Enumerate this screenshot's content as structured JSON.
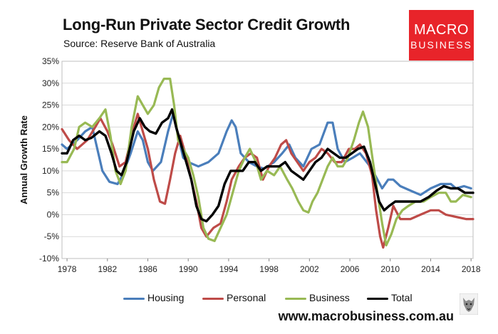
{
  "header": {
    "title": "Long-Run Private Sector Credit Growth",
    "subtitle": "Source: Reserve Bank of Australia"
  },
  "logo": {
    "line1": "MACRO",
    "line2": "BUSINESS"
  },
  "footer": {
    "website": "www.macrobusiness.com.au"
  },
  "colors": {
    "Housing": "#4a7ebb",
    "Personal": "#be4b48",
    "Business": "#98b954",
    "Total": "#000000",
    "logo_bg": "#e8242a",
    "grid": "#d9d9d9"
  },
  "chart_data": {
    "type": "line",
    "title": "Long-Run Private Sector Credit Growth",
    "xlabel": "",
    "ylabel": "Annual Growth Rate",
    "xlim": [
      1977.5,
      2018.2
    ],
    "ylim": [
      -10,
      35
    ],
    "x_ticks": [
      "1978",
      "1982",
      "1986",
      "1990",
      "1994",
      "1998",
      "2002",
      "2006",
      "2010",
      "2014",
      "2018"
    ],
    "y_ticks": [
      "-10%",
      "-5%",
      "0%",
      "5%",
      "10%",
      "15%",
      "20%",
      "25%",
      "30%",
      "35%"
    ],
    "grid": "horizontal",
    "legend": "bottom",
    "series": [
      {
        "name": "Housing",
        "points": [
          [
            1977.5,
            16
          ],
          [
            1978,
            15
          ],
          [
            1979,
            17
          ],
          [
            1979.8,
            19
          ],
          [
            1980.5,
            20
          ],
          [
            1981,
            15
          ],
          [
            1981.5,
            10
          ],
          [
            1982.2,
            7.5
          ],
          [
            1983,
            7
          ],
          [
            1983.5,
            9
          ],
          [
            1984.3,
            14
          ],
          [
            1985,
            19
          ],
          [
            1985.5,
            17
          ],
          [
            1986,
            12
          ],
          [
            1986.5,
            10
          ],
          [
            1987.3,
            12
          ],
          [
            1988,
            19
          ],
          [
            1988.5,
            23
          ],
          [
            1989,
            18
          ],
          [
            1989.5,
            13
          ],
          [
            1990,
            12
          ],
          [
            1991,
            11
          ],
          [
            1992,
            12
          ],
          [
            1993,
            14
          ],
          [
            1993.8,
            19
          ],
          [
            1994.3,
            21.5
          ],
          [
            1994.7,
            20
          ],
          [
            1995.2,
            14
          ],
          [
            1996,
            12
          ],
          [
            1996.8,
            11
          ],
          [
            1997.5,
            10.5
          ],
          [
            1998.5,
            12
          ],
          [
            1999.3,
            14
          ],
          [
            2000,
            16
          ],
          [
            2000.6,
            13
          ],
          [
            2001.4,
            11
          ],
          [
            2002.2,
            15
          ],
          [
            2003,
            16
          ],
          [
            2003.8,
            21
          ],
          [
            2004.3,
            21
          ],
          [
            2004.8,
            15
          ],
          [
            2005.5,
            12
          ],
          [
            2006.3,
            13
          ],
          [
            2007,
            14
          ],
          [
            2008,
            11
          ],
          [
            2008.5,
            9
          ],
          [
            2009.2,
            6
          ],
          [
            2009.8,
            8
          ],
          [
            2010.3,
            8
          ],
          [
            2011,
            6.5
          ],
          [
            2012,
            5.5
          ],
          [
            2013,
            4.5
          ],
          [
            2014,
            6
          ],
          [
            2015,
            7
          ],
          [
            2016,
            7
          ],
          [
            2016.5,
            6
          ],
          [
            2017.3,
            6.5
          ],
          [
            2018,
            6
          ]
        ]
      },
      {
        "name": "Personal",
        "points": [
          [
            1977.5,
            19.5
          ],
          [
            1978.2,
            17
          ],
          [
            1979,
            15
          ],
          [
            1980,
            17
          ],
          [
            1980.8,
            20
          ],
          [
            1981.3,
            22
          ],
          [
            1982,
            19
          ],
          [
            1982.5,
            16
          ],
          [
            1983.2,
            11
          ],
          [
            1983.8,
            12
          ],
          [
            1984.5,
            19
          ],
          [
            1985,
            23
          ],
          [
            1985.5,
            19
          ],
          [
            1986,
            15
          ],
          [
            1986.6,
            8
          ],
          [
            1987.2,
            3
          ],
          [
            1987.7,
            2.5
          ],
          [
            1988.2,
            8
          ],
          [
            1988.7,
            14
          ],
          [
            1989.2,
            18
          ],
          [
            1989.7,
            14
          ],
          [
            1990.3,
            8
          ],
          [
            1990.8,
            3
          ],
          [
            1991.3,
            -3
          ],
          [
            1991.8,
            -5
          ],
          [
            1992.5,
            -3
          ],
          [
            1993.2,
            -2
          ],
          [
            1993.8,
            3
          ],
          [
            1994.3,
            8
          ],
          [
            1995,
            11
          ],
          [
            1995.6,
            13
          ],
          [
            1996.2,
            14
          ],
          [
            1996.8,
            13
          ],
          [
            1997.4,
            8
          ],
          [
            1998,
            11
          ],
          [
            1998.6,
            13
          ],
          [
            1999.2,
            16
          ],
          [
            1999.7,
            17
          ],
          [
            2000.2,
            14
          ],
          [
            2000.8,
            12
          ],
          [
            2001.4,
            10
          ],
          [
            2002,
            12
          ],
          [
            2002.6,
            13
          ],
          [
            2003.2,
            15
          ],
          [
            2003.8,
            14
          ],
          [
            2004.5,
            12
          ],
          [
            2005.2,
            12
          ],
          [
            2005.9,
            15
          ],
          [
            2006.5,
            15
          ],
          [
            2007,
            16
          ],
          [
            2007.6,
            14
          ],
          [
            2008.2,
            9
          ],
          [
            2008.6,
            1
          ],
          [
            2009,
            -5
          ],
          [
            2009.3,
            -7.5
          ],
          [
            2009.8,
            -3
          ],
          [
            2010.3,
            2
          ],
          [
            2011,
            -1
          ],
          [
            2012,
            -1
          ],
          [
            2013,
            0
          ],
          [
            2014,
            1
          ],
          [
            2014.8,
            1
          ],
          [
            2015.5,
            0
          ],
          [
            2016.5,
            -0.5
          ],
          [
            2017.5,
            -1
          ],
          [
            2018.2,
            -1
          ]
        ]
      },
      {
        "name": "Business",
        "points": [
          [
            1977.5,
            12
          ],
          [
            1978,
            12
          ],
          [
            1978.7,
            15
          ],
          [
            1979.2,
            20
          ],
          [
            1979.8,
            21
          ],
          [
            1980.5,
            20
          ],
          [
            1981.2,
            22
          ],
          [
            1981.8,
            24
          ],
          [
            1982.3,
            18
          ],
          [
            1982.8,
            10
          ],
          [
            1983.3,
            7
          ],
          [
            1983.8,
            10
          ],
          [
            1984.4,
            20
          ],
          [
            1985,
            27
          ],
          [
            1985.5,
            25
          ],
          [
            1986,
            23
          ],
          [
            1986.6,
            25
          ],
          [
            1987.1,
            29
          ],
          [
            1987.6,
            31
          ],
          [
            1988.2,
            31
          ],
          [
            1988.6,
            25
          ],
          [
            1989,
            17
          ],
          [
            1989.5,
            15
          ],
          [
            1990,
            13
          ],
          [
            1990.5,
            9
          ],
          [
            1991,
            4
          ],
          [
            1991.5,
            -3
          ],
          [
            1992,
            -5.5
          ],
          [
            1992.6,
            -6
          ],
          [
            1993.2,
            -3
          ],
          [
            1993.8,
            0
          ],
          [
            1994.4,
            5
          ],
          [
            1995,
            10
          ],
          [
            1995.6,
            13
          ],
          [
            1996.1,
            15
          ],
          [
            1996.7,
            12
          ],
          [
            1997.2,
            8
          ],
          [
            1997.8,
            10
          ],
          [
            1998.5,
            9
          ],
          [
            1999.1,
            11
          ],
          [
            1999.8,
            8
          ],
          [
            2000.3,
            6
          ],
          [
            2000.9,
            3
          ],
          [
            2001.4,
            1
          ],
          [
            2001.9,
            0.5
          ],
          [
            2002.3,
            3
          ],
          [
            2002.8,
            5
          ],
          [
            2003.3,
            8
          ],
          [
            2003.8,
            11
          ],
          [
            2004.3,
            13
          ],
          [
            2004.8,
            11
          ],
          [
            2005.3,
            11
          ],
          [
            2005.8,
            13
          ],
          [
            2006.4,
            17
          ],
          [
            2006.9,
            21
          ],
          [
            2007.3,
            23.5
          ],
          [
            2007.8,
            20
          ],
          [
            2008.3,
            12
          ],
          [
            2008.8,
            4
          ],
          [
            2009.2,
            -2
          ],
          [
            2009.6,
            -7
          ],
          [
            2010.1,
            -4.5
          ],
          [
            2010.6,
            -1
          ],
          [
            2011.2,
            1
          ],
          [
            2011.8,
            2
          ],
          [
            2012.5,
            3
          ],
          [
            2013.3,
            3
          ],
          [
            2014,
            4
          ],
          [
            2014.8,
            5
          ],
          [
            2015.5,
            5
          ],
          [
            2016,
            3
          ],
          [
            2016.5,
            3
          ],
          [
            2017.2,
            4.5
          ],
          [
            2018,
            4
          ]
        ]
      },
      {
        "name": "Total",
        "points": [
          [
            1977.5,
            14
          ],
          [
            1978,
            14
          ],
          [
            1978.6,
            17
          ],
          [
            1979.2,
            18
          ],
          [
            1979.8,
            17
          ],
          [
            1980.4,
            17.5
          ],
          [
            1981.2,
            19
          ],
          [
            1981.8,
            18
          ],
          [
            1982.4,
            14
          ],
          [
            1982.9,
            10
          ],
          [
            1983.4,
            9
          ],
          [
            1983.9,
            12
          ],
          [
            1984.6,
            19
          ],
          [
            1985.2,
            22
          ],
          [
            1985.7,
            20
          ],
          [
            1986.2,
            19
          ],
          [
            1986.8,
            18.5
          ],
          [
            1987.4,
            21
          ],
          [
            1988,
            22
          ],
          [
            1988.4,
            24
          ],
          [
            1988.8,
            20
          ],
          [
            1989.3,
            16
          ],
          [
            1989.8,
            12
          ],
          [
            1990.3,
            8
          ],
          [
            1990.8,
            2
          ],
          [
            1991.3,
            -1
          ],
          [
            1991.8,
            -1.5
          ],
          [
            1992.4,
            0
          ],
          [
            1993,
            2
          ],
          [
            1993.6,
            7
          ],
          [
            1994.2,
            10
          ],
          [
            1994.8,
            10
          ],
          [
            1995.4,
            10
          ],
          [
            1996,
            12
          ],
          [
            1996.6,
            12
          ],
          [
            1997.2,
            10
          ],
          [
            1997.8,
            11
          ],
          [
            1998.4,
            11
          ],
          [
            1999,
            11
          ],
          [
            1999.6,
            12
          ],
          [
            2000.2,
            10
          ],
          [
            2000.8,
            9
          ],
          [
            2001.4,
            8
          ],
          [
            2002,
            10
          ],
          [
            2002.6,
            12
          ],
          [
            2003.2,
            13
          ],
          [
            2003.8,
            15
          ],
          [
            2004.4,
            14
          ],
          [
            2005,
            13
          ],
          [
            2005.6,
            13
          ],
          [
            2006.2,
            14
          ],
          [
            2006.8,
            15
          ],
          [
            2007.4,
            15.5
          ],
          [
            2008,
            12
          ],
          [
            2008.5,
            7
          ],
          [
            2008.9,
            3
          ],
          [
            2009.4,
            1
          ],
          [
            2009.9,
            2
          ],
          [
            2010.5,
            3
          ],
          [
            2011.2,
            3
          ],
          [
            2012,
            3
          ],
          [
            2013,
            3
          ],
          [
            2013.8,
            4
          ],
          [
            2014.6,
            5.5
          ],
          [
            2015.3,
            6.5
          ],
          [
            2016,
            6
          ],
          [
            2016.7,
            6
          ],
          [
            2017.4,
            5
          ],
          [
            2018.2,
            5
          ]
        ]
      }
    ]
  }
}
